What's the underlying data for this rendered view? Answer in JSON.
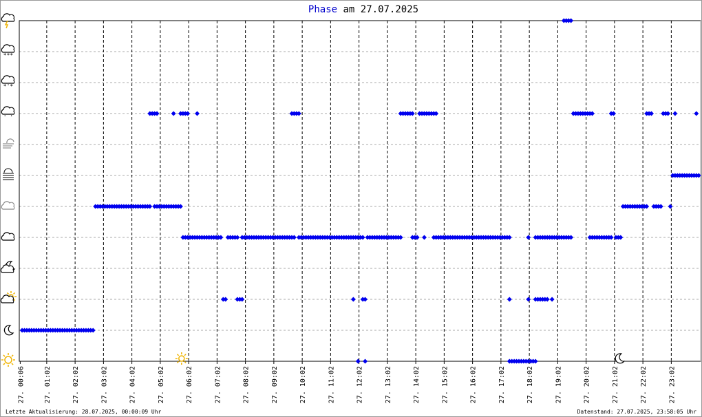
{
  "chart_data": {
    "type": "scatter",
    "title_series": "Phase",
    "title": "am 27.07.2025",
    "footer_left": "Letzte Aktualisierung: 28.07.2025, 00:00:09 Uhr",
    "footer_right": "Datenstand: 27.07.2025, 23:58:05 Uhr",
    "color": "#0000ee",
    "xlim": [
      4,
      1444
    ],
    "xticks": [
      {
        "value": 6,
        "label": "27. 00:06"
      },
      {
        "value": 62,
        "label": "27. 01:02"
      },
      {
        "value": 122,
        "label": "27. 02:02"
      },
      {
        "value": 182,
        "label": "27. 03:02"
      },
      {
        "value": 242,
        "label": "27. 04:02"
      },
      {
        "value": 302,
        "label": "27. 05:02"
      },
      {
        "value": 362,
        "label": "27. 06:02"
      },
      {
        "value": 422,
        "label": "27. 07:02"
      },
      {
        "value": 482,
        "label": "27. 08:02"
      },
      {
        "value": 542,
        "label": "27. 09:02"
      },
      {
        "value": 602,
        "label": "27. 10:02"
      },
      {
        "value": 662,
        "label": "27. 11:02"
      },
      {
        "value": 722,
        "label": "27. 12:02"
      },
      {
        "value": 782,
        "label": "27. 13:02"
      },
      {
        "value": 842,
        "label": "27. 14:02"
      },
      {
        "value": 902,
        "label": "27. 15:02"
      },
      {
        "value": 962,
        "label": "27. 16:02"
      },
      {
        "value": 1022,
        "label": "27. 17:02"
      },
      {
        "value": 1082,
        "label": "27. 18:02"
      },
      {
        "value": 1142,
        "label": "27. 19:02"
      },
      {
        "value": 1202,
        "label": "27. 20:02"
      },
      {
        "value": 1262,
        "label": "27. 21:02"
      },
      {
        "value": 1322,
        "label": "27. 22:02"
      },
      {
        "value": 1382,
        "label": "27. 23:02"
      }
    ],
    "ylim": [
      0,
      11
    ],
    "yticks": [
      0,
      1,
      2,
      3,
      4,
      5,
      6,
      7,
      8,
      9,
      10,
      11
    ],
    "grid": true,
    "sunrise": 347,
    "sunset": 1272,
    "groups": [
      {
        "y": 1,
        "x": [
          10,
          15,
          20,
          25,
          30,
          35,
          40,
          45,
          50,
          55,
          60,
          65,
          70,
          75,
          80,
          85,
          90,
          95,
          100,
          105,
          110,
          115,
          120,
          125,
          130,
          135,
          140,
          145,
          150,
          155,
          160
        ]
      },
      {
        "y": 5,
        "x": [
          165,
          170,
          175,
          180,
          185,
          190,
          195,
          200,
          205,
          210,
          215,
          220,
          225,
          230,
          235,
          240,
          245,
          250,
          255,
          260,
          265,
          270,
          275,
          280,
          290,
          295,
          300,
          305,
          310,
          315,
          320,
          325,
          330,
          335,
          340,
          345,
          1280,
          1285,
          1290,
          1295,
          1300,
          1305,
          1310,
          1315,
          1320,
          1325,
          1330,
          1345,
          1350,
          1355,
          1360,
          1380
        ]
      },
      {
        "y": 4,
        "x": [
          350,
          355,
          360,
          365,
          370,
          375,
          380,
          385,
          390,
          395,
          400,
          405,
          410,
          415,
          420,
          425,
          430,
          445,
          450,
          455,
          460,
          465,
          475,
          480,
          485,
          490,
          495,
          500,
          505,
          510,
          515,
          520,
          525,
          530,
          535,
          540,
          545,
          550,
          555,
          560,
          565,
          570,
          575,
          580,
          585,
          595,
          600,
          605,
          610,
          615,
          620,
          625,
          630,
          635,
          640,
          645,
          650,
          655,
          660,
          665,
          670,
          675,
          680,
          685,
          690,
          695,
          700,
          705,
          710,
          715,
          720,
          725,
          730,
          740,
          745,
          750,
          755,
          760,
          765,
          770,
          775,
          780,
          785,
          790,
          795,
          800,
          805,
          810,
          835,
          840,
          845,
          860,
          880,
          885,
          890,
          895,
          900,
          905,
          910,
          915,
          920,
          925,
          930,
          935,
          940,
          945,
          950,
          955,
          960,
          965,
          970,
          975,
          980,
          985,
          990,
          995,
          1000,
          1005,
          1010,
          1015,
          1020,
          1025,
          1030,
          1035,
          1040,
          1080,
          1095,
          1100,
          1105,
          1110,
          1115,
          1120,
          1125,
          1130,
          1135,
          1140,
          1145,
          1150,
          1155,
          1160,
          1165,
          1170,
          1210,
          1215,
          1220,
          1225,
          1230,
          1235,
          1240,
          1245,
          1250,
          1255,
          1265,
          1270,
          1275
        ]
      },
      {
        "y": 8,
        "x": [
          280,
          285,
          290,
          295,
          330,
          345,
          350,
          355,
          360,
          380,
          580,
          585,
          590,
          595,
          810,
          815,
          820,
          825,
          830,
          835,
          850,
          855,
          860,
          865,
          870,
          875,
          880,
          885,
          1175,
          1180,
          1185,
          1190,
          1195,
          1200,
          1205,
          1210,
          1215,
          1255,
          1260,
          1330,
          1335,
          1340,
          1365,
          1370,
          1375,
          1390,
          1435
        ]
      },
      {
        "y": 2,
        "x": [
          435,
          440,
          465,
          470,
          475,
          710,
          730,
          735,
          1040,
          1080,
          1095,
          1100,
          1105,
          1110,
          1115,
          1120,
          1130
        ]
      },
      {
        "y": 0,
        "x": [
          720,
          735,
          1040,
          1045,
          1050,
          1055,
          1060,
          1065,
          1070,
          1075,
          1080,
          1085,
          1090,
          1095
        ]
      },
      {
        "y": 11,
        "x": [
          1155,
          1160,
          1165,
          1170
        ]
      },
      {
        "y": 6,
        "x": [
          1385,
          1390,
          1395,
          1400,
          1405,
          1410,
          1415,
          1420,
          1425,
          1430,
          1435,
          1440
        ]
      }
    ]
  }
}
